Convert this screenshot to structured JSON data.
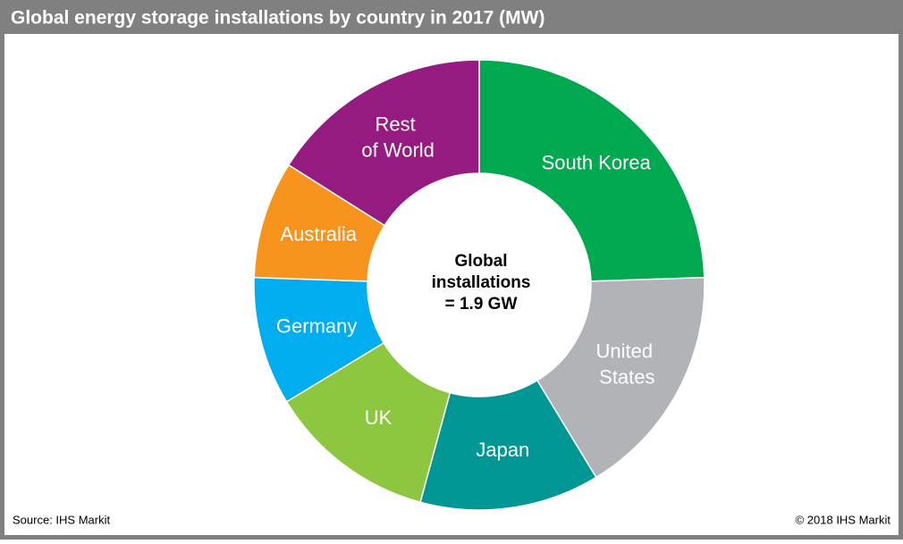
{
  "chart_data": {
    "type": "donut",
    "title": "Global energy storage installations by country in 2017 (MW)",
    "categories": [
      "South Korea",
      "United States",
      "Japan",
      "UK",
      "Germany",
      "Australia",
      "Rest of World"
    ],
    "values": [
      465,
      320,
      245,
      230,
      175,
      160,
      305
    ],
    "colors": [
      "#00a94f",
      "#b1b3b6",
      "#009693",
      "#8dc63f",
      "#00aeef",
      "#f7941d",
      "#951b81"
    ],
    "center_label": [
      "Global",
      "installations",
      "= 1.9 GW"
    ],
    "source": "Source: IHS Markit",
    "copyright": "© 2018 IHS Markit"
  }
}
